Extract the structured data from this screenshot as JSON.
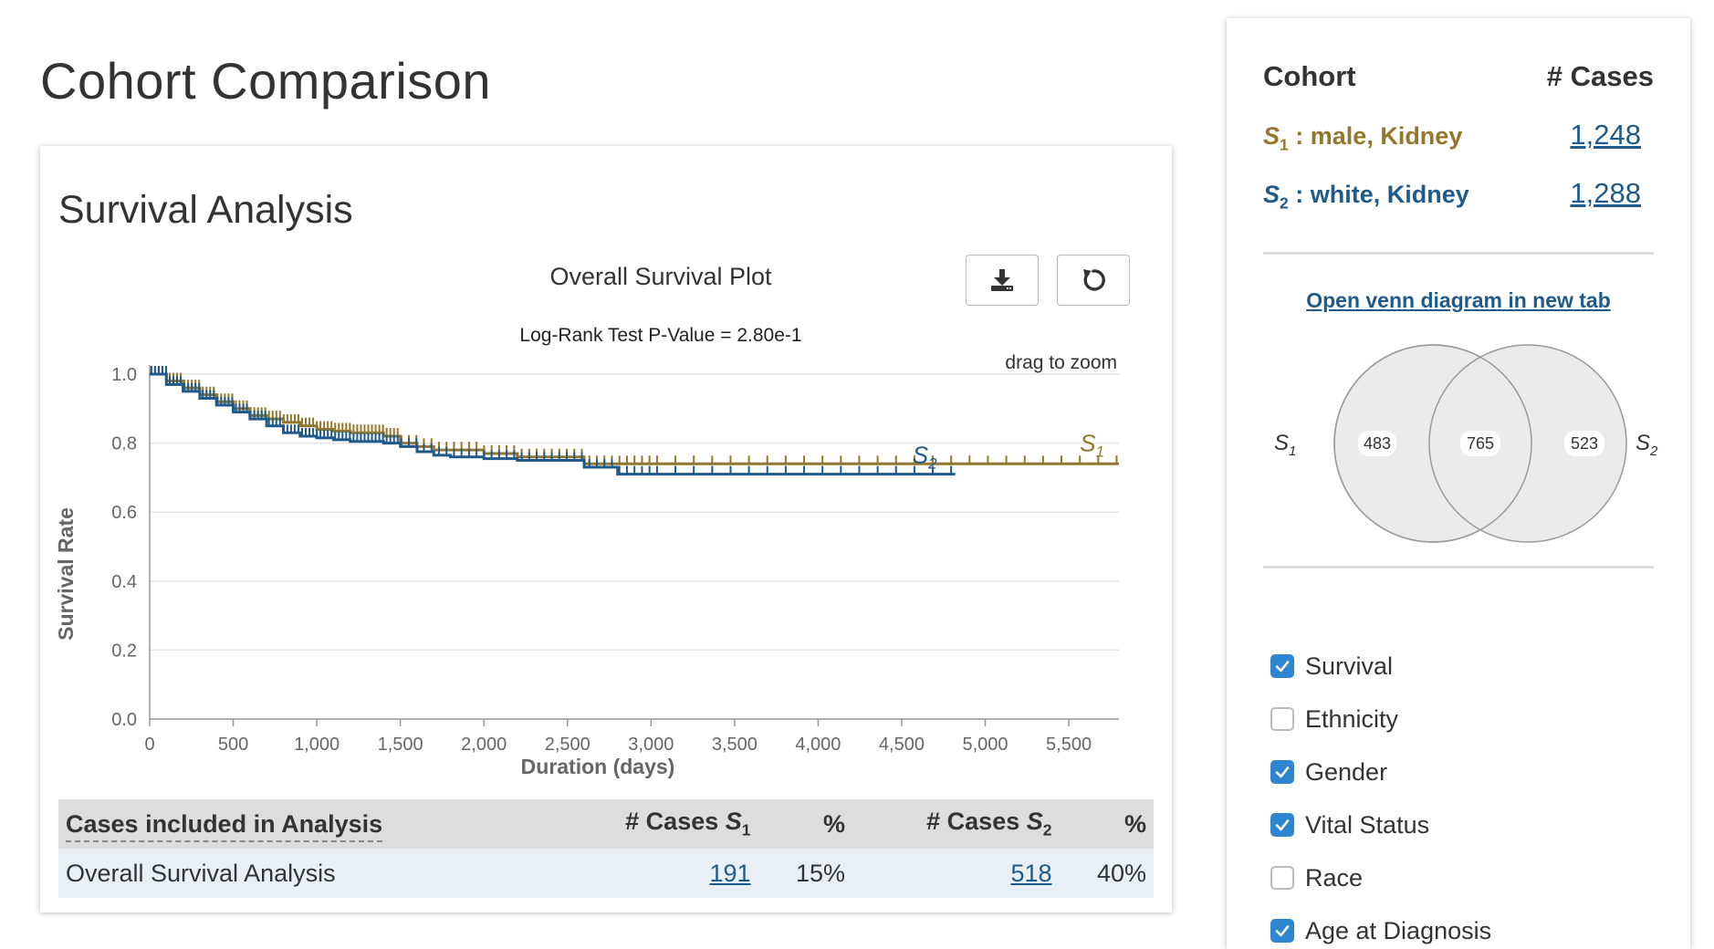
{
  "page": {
    "title": "Cohort Comparison"
  },
  "survival": {
    "title": "Survival Analysis",
    "download_icon": "download-icon",
    "reset_icon": "reset-icon",
    "plot_title": "Overall Survival Plot",
    "pvalue_text": "Log-Rank Test P-Value = 2.80e-1",
    "drag_hint": "drag to zoom"
  },
  "chart_data": {
    "type": "line",
    "title": "Overall Survival Plot",
    "subtitle": "Log-Rank Test P-Value = 2.80e-1",
    "xlabel": "Duration (days)",
    "ylabel": "Survival Rate",
    "xlim": [
      0,
      5800
    ],
    "ylim": [
      0,
      1.0
    ],
    "x_ticks": [
      "0",
      "500",
      "1,000",
      "1,500",
      "2,000",
      "2,500",
      "3,000",
      "3,500",
      "4,000",
      "4,500",
      "5,000",
      "5,500"
    ],
    "x_tick_values": [
      0,
      500,
      1000,
      1500,
      2000,
      2500,
      3000,
      3500,
      4000,
      4500,
      5000,
      5500
    ],
    "y_ticks": [
      "0.0",
      "0.2",
      "0.4",
      "0.6",
      "0.8",
      "1.0"
    ],
    "y_tick_values": [
      0,
      0.2,
      0.4,
      0.6,
      0.8,
      1.0
    ],
    "grid": true,
    "series": [
      {
        "name": "S1",
        "color": "#93772e",
        "x": [
          0,
          100,
          200,
          300,
          400,
          500,
          600,
          700,
          800,
          900,
          1000,
          1100,
          1200,
          1400,
          1500,
          1600,
          1700,
          1800,
          2000,
          2200,
          2600,
          3000,
          4000,
          5000,
          5800
        ],
        "y": [
          1.0,
          0.98,
          0.96,
          0.94,
          0.92,
          0.9,
          0.88,
          0.87,
          0.86,
          0.85,
          0.84,
          0.835,
          0.83,
          0.82,
          0.8,
          0.79,
          0.78,
          0.78,
          0.77,
          0.76,
          0.74,
          0.74,
          0.74,
          0.74,
          0.74
        ]
      },
      {
        "name": "S2",
        "color": "#1f5a8a",
        "x": [
          0,
          100,
          200,
          300,
          400,
          500,
          600,
          700,
          800,
          900,
          1000,
          1100,
          1200,
          1400,
          1500,
          1600,
          1700,
          1800,
          2000,
          2200,
          2600,
          2800,
          3500,
          4000,
          4500,
          4820
        ],
        "y": [
          1.0,
          0.97,
          0.95,
          0.93,
          0.91,
          0.89,
          0.87,
          0.85,
          0.83,
          0.82,
          0.815,
          0.81,
          0.805,
          0.8,
          0.79,
          0.775,
          0.765,
          0.76,
          0.755,
          0.75,
          0.73,
          0.71,
          0.71,
          0.71,
          0.71,
          0.71
        ]
      }
    ]
  },
  "analysis_table": {
    "headers": {
      "label": "Cases included in Analysis",
      "cases_s1_prefix": "# Cases ",
      "cases_s2_prefix": "# Cases ",
      "series_letter": "S",
      "sub1": "1",
      "sub2": "2",
      "pct": "%"
    },
    "rows": [
      {
        "label": "Overall Survival Analysis",
        "s1_cases": "191",
        "s1_pct": "15%",
        "s2_cases": "518",
        "s2_pct": "40%"
      }
    ]
  },
  "cohort_panel": {
    "head_cohort": "Cohort",
    "head_cases": "# Cases",
    "cohorts": [
      {
        "letter": "S",
        "sub": "1",
        "name": " : male, Kidney",
        "count": "1,248",
        "color": "#93772e"
      },
      {
        "letter": "S",
        "sub": "2",
        "name": " : white, Kidney",
        "count": "1,288",
        "color": "#1f5a8a"
      }
    ],
    "venn_link": "Open venn diagram in new tab",
    "venn": {
      "left_label": "S",
      "left_sub": "1",
      "right_label": "S",
      "right_sub": "2",
      "only_s1": "483",
      "both": "765",
      "only_s2": "523"
    },
    "facets": [
      {
        "label": "Survival",
        "checked": true
      },
      {
        "label": "Ethnicity",
        "checked": false
      },
      {
        "label": "Gender",
        "checked": true
      },
      {
        "label": "Vital Status",
        "checked": true
      },
      {
        "label": "Race",
        "checked": false
      },
      {
        "label": "Age at Diagnosis",
        "checked": true
      }
    ]
  }
}
